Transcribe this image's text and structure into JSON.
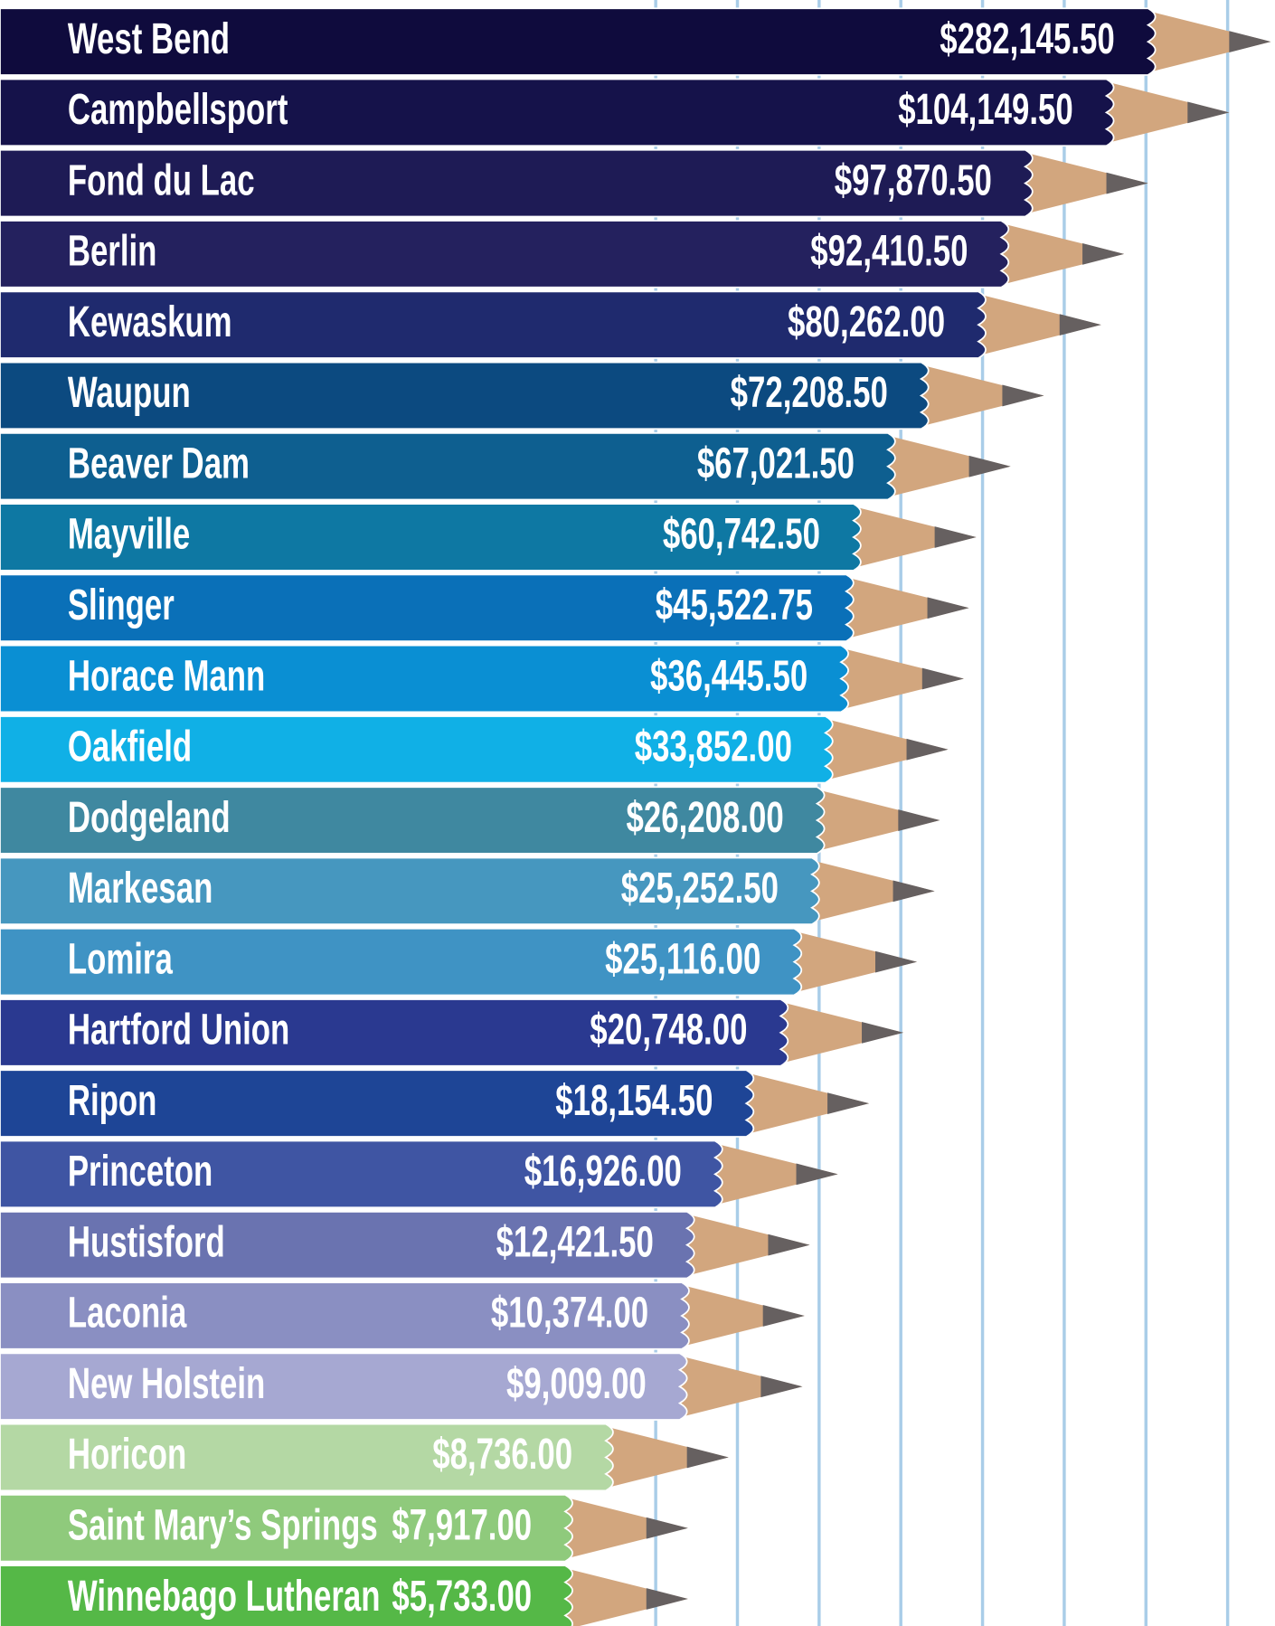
{
  "chart_data": {
    "type": "pencil-bar",
    "categories": [
      "West Bend",
      "Campbellsport",
      "Fond du Lac",
      "Berlin",
      "Kewaskum",
      "Waupun",
      "Beaver Dam",
      "Mayville",
      "Slinger",
      "Horace Mann",
      "Oakfield",
      "Dodgeland",
      "Markesan",
      "Lomira",
      "Hartford Union",
      "Ripon",
      "Princeton",
      "Hustisford",
      "Laconia",
      "New Holstein",
      "Horicon",
      "Saint Mary’s Springs",
      "Winnebago Lutheran"
    ],
    "values": [
      282145.5,
      104149.5,
      97870.5,
      92410.5,
      80262,
      72208.5,
      67021.5,
      60742.5,
      45522.75,
      36445.5,
      33852,
      26208,
      25252.5,
      25116,
      20748,
      18154.5,
      16926,
      12421.5,
      10374,
      9009,
      8736,
      7917,
      5733
    ],
    "value_labels": [
      "$282,145.50",
      "$104,149.50",
      "$97,870.50",
      "$92,410.50",
      "$80,262.00",
      "$72,208.50",
      "$67,021.50",
      "$60,742.50",
      "$45,522.75",
      "$36,445.50",
      "$33,852.00",
      "$26,208.00",
      "$25,252.50",
      "$25,116.00",
      "$20,748.00",
      "$18,154.50",
      "$16,926.00",
      "$12,421.50",
      "$10,374.00",
      "$9,009.00",
      "$8,736.00",
      "$7,917.00",
      "$5,733.00"
    ],
    "colors": [
      "#0f0b3d",
      "#15124a",
      "#1e1b55",
      "#24215e",
      "#1f2a6e",
      "#0c4a80",
      "#0e5f90",
      "#0e78a3",
      "#0a70b8",
      "#0a8fd3",
      "#10b0e6",
      "#3f88a0",
      "#4697bf",
      "#3f93c4",
      "#2a3990",
      "#1e4596",
      "#3f55a3",
      "#6a73b0",
      "#8a8fc2",
      "#a6a8d2",
      "#b4d8a4",
      "#8fca7c",
      "#55b847"
    ]
  }
}
